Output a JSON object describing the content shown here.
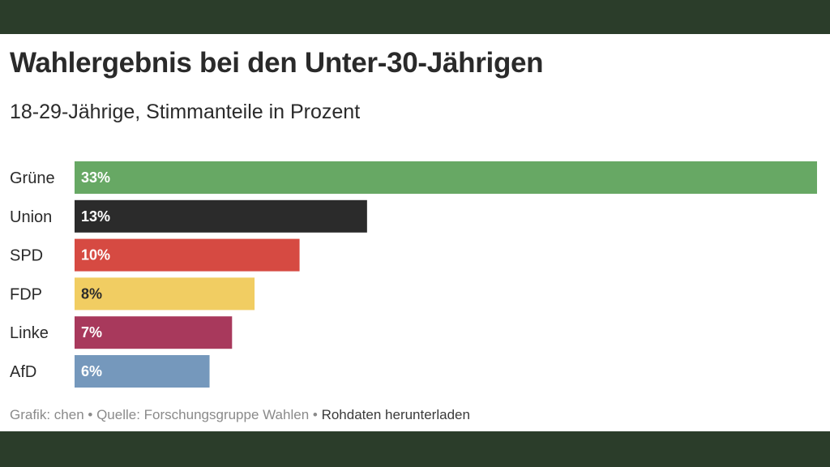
{
  "chart_data": {
    "type": "bar",
    "orientation": "horizontal",
    "title": "Wahlergebnis bei den Unter-30-Jährigen",
    "subtitle": "18-29-Jährige, Stimmanteile in Prozent",
    "categories": [
      "Grüne",
      "Union",
      "SPD",
      "FDP",
      "Linke",
      "AfD"
    ],
    "values": [
      33,
      13,
      10,
      8,
      7,
      6
    ],
    "value_labels": [
      "33%",
      "13%",
      "10%",
      "8%",
      "7%",
      "6%"
    ],
    "colors": [
      "#67a864",
      "#2b2b2b",
      "#d64a42",
      "#f1cd62",
      "#a8395c",
      "#7598bc"
    ],
    "value_label_colors": [
      "#ffffff",
      "#ffffff",
      "#ffffff",
      "#2b2b2b",
      "#ffffff",
      "#ffffff"
    ],
    "xlim": [
      0,
      33
    ],
    "grid": false
  },
  "footer": {
    "credit": "Grafik: chen",
    "separator": "•",
    "source": "Quelle: Forschungsgruppe Wahlen",
    "download_label": "Rohdaten herunterladen"
  }
}
